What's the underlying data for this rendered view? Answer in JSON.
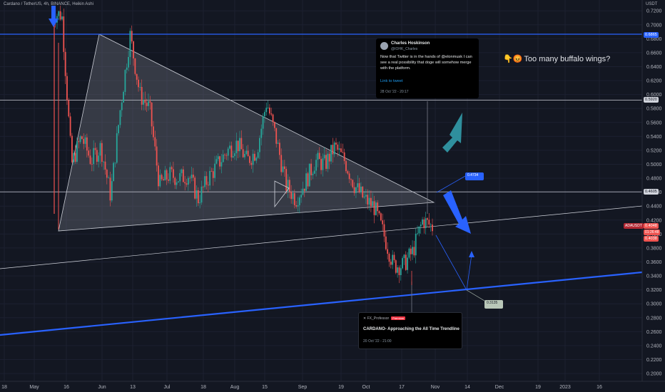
{
  "header": {
    "title": "Cardano / TetherUS, 4h, BINANCE, Heikin Ashi"
  },
  "price_axis": {
    "currency": "USDT"
  },
  "chart_data": {
    "type": "candlestick",
    "symbol": "Cardano / TetherUS",
    "timeframe": "4h",
    "exchange": "BINANCE",
    "style": "Heikin Ashi",
    "ylim": [
      0.19,
      0.72
    ],
    "y_ticks": [
      "0.7200",
      "0.7000",
      "0.6800",
      "0.6600",
      "0.6400",
      "0.6200",
      "0.6000",
      "0.5800",
      "0.5600",
      "0.5400",
      "0.5200",
      "0.5000",
      "0.4800",
      "0.4600",
      "0.4400",
      "0.4200",
      "0.4000",
      "0.3800",
      "0.3600",
      "0.3400",
      "0.3200",
      "0.3000",
      "0.2800",
      "0.2600",
      "0.2400",
      "0.2200",
      "0.2000"
    ],
    "x_ticks": [
      "18",
      "May",
      "16",
      "Jun",
      "13",
      "Jul",
      "18",
      "Aug",
      "15",
      "Sep",
      "19",
      "Oct",
      "17",
      "Nov",
      "14",
      "Dec",
      "19",
      "2023",
      "16"
    ],
    "ohlc_anchors": [
      [
        0,
        0.715,
        0.4
      ],
      [
        1,
        0.715,
        0.4
      ],
      [
        2,
        0.5,
        0.56
      ],
      [
        3,
        0.54,
        0.49
      ],
      [
        4,
        0.505,
        0.53
      ],
      [
        5,
        0.525,
        0.45
      ],
      [
        6,
        0.455,
        0.51
      ],
      [
        7,
        0.58,
        0.62
      ],
      [
        8,
        0.685,
        0.61
      ],
      [
        9,
        0.6,
        0.52
      ],
      [
        10,
        0.58,
        0.46
      ],
      [
        11,
        0.47,
        0.48
      ],
      [
        12,
        0.485,
        0.5
      ],
      [
        13,
        0.48,
        0.47
      ],
      [
        14,
        0.485,
        0.45
      ],
      [
        15,
        0.45,
        0.48
      ],
      [
        16,
        0.48,
        0.5
      ],
      [
        17,
        0.5,
        0.51
      ],
      [
        18,
        0.52,
        0.55
      ],
      [
        19,
        0.53,
        0.5
      ],
      [
        20,
        0.505,
        0.56
      ],
      [
        21,
        0.52,
        0.58
      ],
      [
        22,
        0.59,
        0.56
      ],
      [
        23,
        0.535,
        0.47
      ],
      [
        24,
        0.47,
        0.45
      ],
      [
        25,
        0.45,
        0.46
      ],
      [
        26,
        0.475,
        0.5
      ],
      [
        27,
        0.505,
        0.5
      ],
      [
        28,
        0.5,
        0.51
      ],
      [
        29,
        0.525,
        0.51
      ],
      [
        30,
        0.505,
        0.47
      ],
      [
        31,
        0.47,
        0.45
      ],
      [
        32,
        0.45,
        0.44
      ],
      [
        33,
        0.44,
        0.41
      ],
      [
        34,
        0.4,
        0.39
      ],
      [
        35,
        0.355,
        0.34
      ],
      [
        36,
        0.355,
        0.37
      ],
      [
        37,
        0.375,
        0.41
      ],
      [
        38,
        0.42,
        0.41
      ],
      [
        39,
        0.41,
        0.405
      ]
    ],
    "horizontal_levels": [
      {
        "price": 0.6865,
        "color": "#2962ff",
        "label": "0.6865"
      },
      {
        "price": 0.592,
        "color": "#b2b5be",
        "label": "0.5920"
      },
      {
        "price": 0.4605,
        "color": "#b2b5be",
        "label": "0.4605"
      }
    ],
    "last_price": {
      "label": "ADAUSDT",
      "value": "0.4048",
      "countdown": "01:26:48",
      "second": "0.4038"
    },
    "annotations": {
      "target_up": "0.4734",
      "target_down": "0.3135"
    }
  },
  "tweet": {
    "name": "Charles Hoskinson",
    "handle": "@IOHK_Charles",
    "text": "Now that Twitter is in the hands of @elonmusk I can see a real possibility that doge will somehow merge with the platform.",
    "link": "Link to tweet",
    "date": "28 Oct '22 - 20:17"
  },
  "note": {
    "text": "Too many buffalo wings?",
    "emoji": "👇😡"
  },
  "idea": {
    "author": "FX_Professor",
    "badge": "Premium",
    "title": "CARDANO- Approaching the All Time Trendline",
    "date": "20 Oct '22 - 21:00"
  },
  "colors": {
    "up": "#26a69a",
    "down": "#ef5350",
    "bg": "#131722",
    "blue": "#2962ff",
    "teal": "#2f8f9d"
  }
}
